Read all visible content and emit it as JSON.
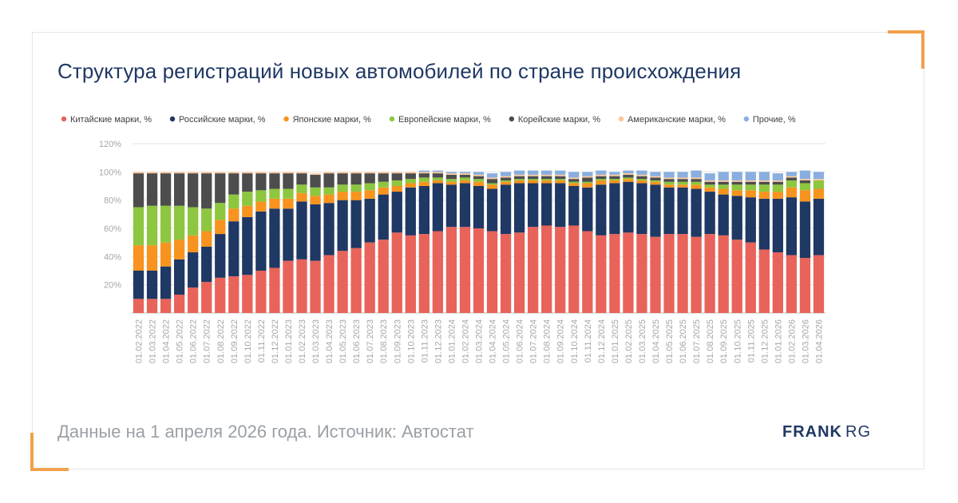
{
  "title": "Структура регистраций новых автомобилей по стране происхождения",
  "footer": "Данные на 1 апреля 2026 года. Источник: Автостат",
  "logo": {
    "bold": "FRANK",
    "light": "RG"
  },
  "colors": {
    "accent": "#f0a04b",
    "title": "#1f3864"
  },
  "chart_data": {
    "type": "bar",
    "stacked": true,
    "grid": true,
    "legend_position": "top",
    "ylim": [
      0,
      120
    ],
    "yticks": [
      "",
      "20%",
      "40%",
      "60%",
      "80%",
      "100%",
      "120%"
    ],
    "categories": [
      "01.02.2022",
      "01.03.2022",
      "01.04.2022",
      "01.05.2022",
      "01.06.2022",
      "01.07.2022",
      "01.08.2022",
      "01.09.2022",
      "01.10.2022",
      "01.11.2022",
      "01.12.2022",
      "01.01.2023",
      "01.02.2023",
      "01.03.2023",
      "01.04.2023",
      "01.05.2023",
      "01.06.2023",
      "01.07.2023",
      "01.08.2023",
      "01.09.2023",
      "01.10.2023",
      "01.11.2023",
      "01.12.2023",
      "01.01.2024",
      "01.02.2024",
      "01.03.2024",
      "01.04.2024",
      "01.05.2024",
      "01.06.2024",
      "01.07.2024",
      "01.08.2024",
      "01.09.2024",
      "01.10.2024",
      "01.11.2024",
      "01.12.2024",
      "01.01.2025",
      "01.02.2025",
      "01.03.2025",
      "01.04.2025",
      "01.05.2025",
      "01.06.2025",
      "01.07.2025",
      "01.08.2025",
      "01.09.2025",
      "01.10.2025",
      "01.11.2025",
      "01.12.2025",
      "01.01.2026",
      "01.02.2026",
      "01.03.2026",
      "01.04.2026"
    ],
    "series": [
      {
        "name": "Китайские марки, %",
        "color": "#e8635a",
        "values": [
          10,
          10,
          10,
          13,
          18,
          22,
          25,
          26,
          27,
          30,
          32,
          37,
          38,
          37,
          41,
          44,
          46,
          50,
          52,
          57,
          55,
          56,
          58,
          61,
          61,
          60,
          58,
          56,
          57,
          61,
          62,
          61,
          62,
          58,
          55,
          56,
          57,
          56,
          54,
          56,
          56,
          54,
          56,
          55,
          52,
          50,
          45,
          43,
          41,
          39,
          41
        ]
      },
      {
        "name": "Российские марки, %",
        "color": "#1f3864",
        "values": [
          20,
          20,
          23,
          25,
          25,
          25,
          31,
          39,
          41,
          42,
          42,
          37,
          41,
          40,
          37,
          36,
          34,
          31,
          32,
          29,
          34,
          34,
          34,
          30,
          31,
          30,
          30,
          35,
          35,
          31,
          30,
          31,
          28,
          31,
          36,
          36,
          36,
          36,
          37,
          33,
          33,
          34,
          30,
          29,
          31,
          32,
          36,
          38,
          41,
          40,
          40
        ]
      },
      {
        "name": "Японские марки, %",
        "color": "#f7931e",
        "values": [
          18,
          18,
          17,
          14,
          12,
          11,
          10,
          9,
          8,
          7,
          7,
          7,
          6,
          6,
          6,
          6,
          6,
          6,
          5,
          4,
          3,
          3,
          2,
          2,
          2,
          3,
          3,
          2,
          2,
          2,
          2,
          2,
          2,
          3,
          3,
          2,
          2,
          2,
          2,
          2,
          2,
          3,
          3,
          4,
          4,
          5,
          5,
          5,
          7,
          8,
          7
        ]
      },
      {
        "name": "Европейские марки, %",
        "color": "#8dc63f",
        "values": [
          27,
          28,
          26,
          24,
          20,
          16,
          12,
          10,
          10,
          8,
          7,
          7,
          6,
          6,
          5,
          5,
          5,
          5,
          4,
          4,
          3,
          3,
          2,
          2,
          2,
          2,
          1,
          1,
          1,
          1,
          1,
          1,
          1,
          1,
          1,
          1,
          1,
          1,
          1,
          2,
          2,
          2,
          2,
          3,
          4,
          4,
          5,
          5,
          5,
          5,
          6
        ]
      },
      {
        "name": "Корейские марки, %",
        "color": "#4d4d4d",
        "values": [
          24,
          23,
          23,
          23,
          24,
          25,
          21,
          15,
          13,
          12,
          11,
          11,
          8,
          9,
          10,
          8,
          8,
          7,
          6,
          5,
          4,
          3,
          3,
          3,
          2,
          2,
          3,
          2,
          2,
          2,
          2,
          2,
          2,
          3,
          2,
          2,
          2,
          2,
          2,
          2,
          2,
          2,
          2,
          2,
          2,
          2,
          2,
          2,
          2,
          2,
          0
        ]
      },
      {
        "name": "Американские марки, %",
        "color": "#fbc89b",
        "values": [
          1,
          1,
          1,
          1,
          1,
          1,
          1,
          1,
          1,
          1,
          1,
          1,
          1,
          1,
          1,
          1,
          1,
          1,
          1,
          1,
          1,
          1,
          1,
          1,
          1,
          1,
          1,
          1,
          1,
          1,
          1,
          1,
          1,
          1,
          1,
          1,
          1,
          1,
          1,
          1,
          1,
          1,
          1,
          1,
          1,
          1,
          1,
          1,
          1,
          1,
          1
        ]
      },
      {
        "name": "Прочие, %",
        "color": "#8aaee0",
        "values": [
          0,
          0,
          0,
          0,
          0,
          0,
          0,
          0,
          0,
          0,
          0,
          0,
          0,
          0,
          0,
          0,
          0,
          0,
          0,
          0,
          0,
          1,
          1,
          1,
          1,
          2,
          3,
          3,
          3,
          3,
          3,
          3,
          4,
          3,
          3,
          2,
          2,
          3,
          3,
          4,
          4,
          5,
          5,
          6,
          6,
          6,
          6,
          5,
          3,
          6,
          5
        ]
      }
    ]
  }
}
